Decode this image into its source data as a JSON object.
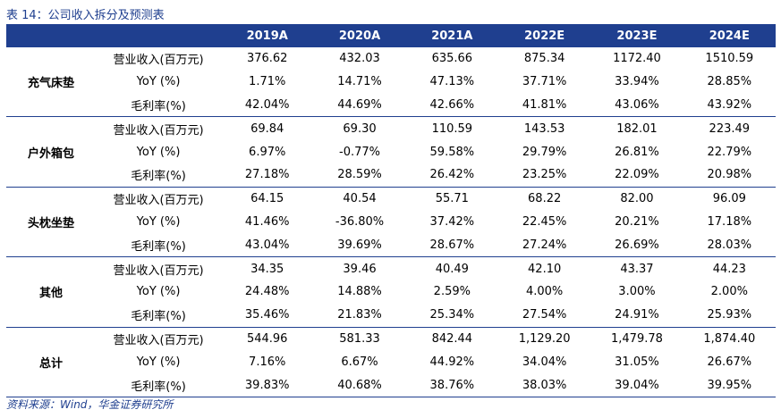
{
  "title": "表 14：公司收入拆分及预测表",
  "columns": [
    "",
    "",
    "2019A",
    "2020A",
    "2021A",
    "2022E",
    "2023E",
    "2024E"
  ],
  "groups": [
    {
      "name": "充气床垫",
      "rows": [
        {
          "metric": "营业收入(百万元)",
          "values": [
            "376.62",
            "432.03",
            "635.66",
            "875.34",
            "1172.40",
            "1510.59"
          ]
        },
        {
          "metric": "YoY (%)",
          "values": [
            "1.71%",
            "14.71%",
            "47.13%",
            "37.71%",
            "33.94%",
            "28.85%"
          ]
        },
        {
          "metric": "毛利率(%)",
          "values": [
            "42.04%",
            "44.69%",
            "42.66%",
            "41.81%",
            "43.06%",
            "43.92%"
          ]
        }
      ]
    },
    {
      "name": "户外箱包",
      "rows": [
        {
          "metric": "营业收入(百万元)",
          "values": [
            "69.84",
            "69.30",
            "110.59",
            "143.53",
            "182.01",
            "223.49"
          ]
        },
        {
          "metric": "YoY (%)",
          "values": [
            "6.97%",
            "-0.77%",
            "59.58%",
            "29.79%",
            "26.81%",
            "22.79%"
          ]
        },
        {
          "metric": "毛利率(%)",
          "values": [
            "27.18%",
            "28.59%",
            "26.42%",
            "23.25%",
            "22.09%",
            "20.98%"
          ]
        }
      ]
    },
    {
      "name": "头枕坐垫",
      "rows": [
        {
          "metric": "营业收入(百万元)",
          "values": [
            "64.15",
            "40.54",
            "55.71",
            "68.22",
            "82.00",
            "96.09"
          ]
        },
        {
          "metric": "YoY (%)",
          "values": [
            "41.46%",
            "-36.80%",
            "37.42%",
            "22.45%",
            "20.21%",
            "17.18%"
          ]
        },
        {
          "metric": "毛利率(%)",
          "values": [
            "43.04%",
            "39.69%",
            "28.67%",
            "27.24%",
            "26.69%",
            "28.03%"
          ]
        }
      ]
    },
    {
      "name": "其他",
      "rows": [
        {
          "metric": "营业收入(百万元)",
          "values": [
            "34.35",
            "39.46",
            "40.49",
            "42.10",
            "43.37",
            "44.23"
          ]
        },
        {
          "metric": "YoY (%)",
          "values": [
            "24.48%",
            "14.88%",
            "2.59%",
            "4.00%",
            "3.00%",
            "2.00%"
          ]
        },
        {
          "metric": "毛利率(%)",
          "values": [
            "35.46%",
            "21.83%",
            "25.34%",
            "27.54%",
            "24.91%",
            "25.93%"
          ]
        }
      ]
    },
    {
      "name": "总计",
      "rows": [
        {
          "metric": "营业收入(百万元)",
          "values": [
            "544.96",
            "581.33",
            "842.44",
            "1,129.20",
            "1,479.78",
            "1,874.40"
          ]
        },
        {
          "metric": "YoY (%)",
          "values": [
            "7.16%",
            "6.67%",
            "44.92%",
            "34.04%",
            "31.05%",
            "26.67%"
          ]
        },
        {
          "metric": "毛利率(%)",
          "values": [
            "39.83%",
            "40.68%",
            "38.76%",
            "38.03%",
            "39.04%",
            "39.95%"
          ]
        }
      ]
    }
  ],
  "source": "资料来源：Wind，华金证券研究所",
  "colors": {
    "header_bg": "#1f3f8f",
    "accent": "#1f3f8f"
  }
}
